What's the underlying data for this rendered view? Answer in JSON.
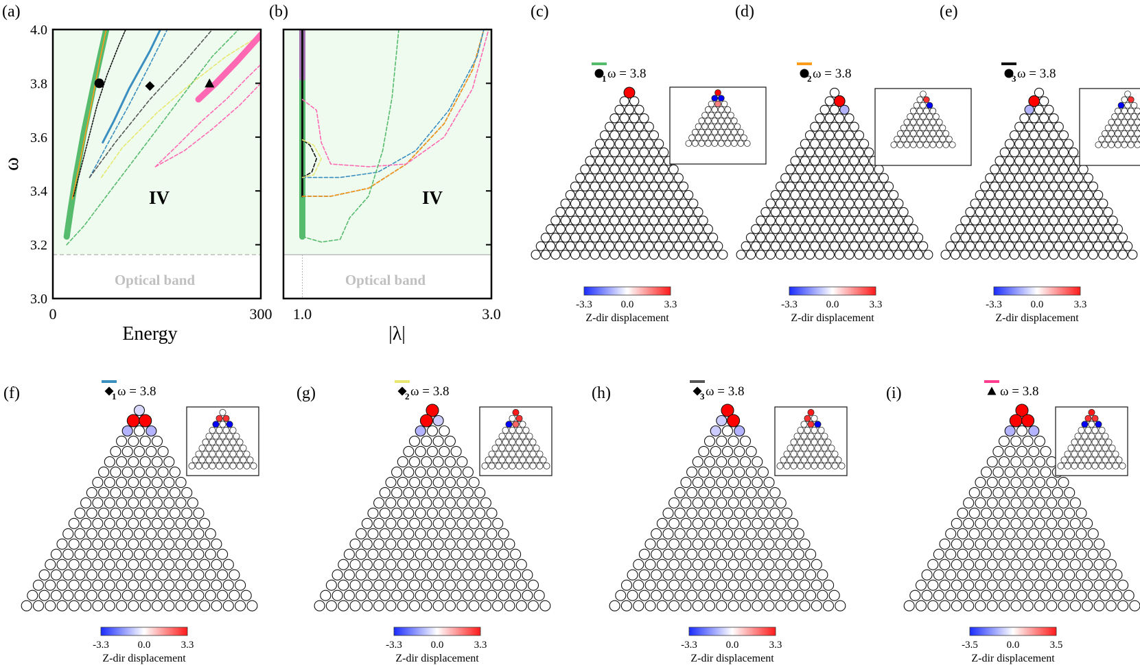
{
  "chart_data": [
    {
      "panel": "(a)",
      "type": "line",
      "xlabel": "Energy",
      "ylabel": "ω",
      "xlim": [
        0,
        300
      ],
      "ylim": [
        3.0,
        4.0
      ],
      "xticks": [
        "0",
        "300"
      ],
      "yticks": [
        "3.0",
        "3.2",
        "3.4",
        "3.6",
        "3.8",
        "4.0"
      ],
      "region_label": "IV",
      "band_label": "Optical band",
      "band_edge": 3.163,
      "background": "#eefbee",
      "series": [
        {
          "style": "solid-thick",
          "color": "#57bb6e",
          "points": [
            [
              20,
              3.23
            ],
            [
              25,
              3.32
            ],
            [
              33,
              3.45
            ],
            [
              45,
              3.62
            ],
            [
              58,
              3.78
            ],
            [
              70,
              3.92
            ],
            [
              77,
              4.0
            ]
          ]
        },
        {
          "style": "solid-thin",
          "color": "#ff9b1a",
          "points": [
            [
              28,
              3.37
            ],
            [
              36,
              3.47
            ],
            [
              46,
              3.6
            ],
            [
              57,
              3.74
            ],
            [
              68,
              3.89
            ],
            [
              77,
              4.0
            ]
          ]
        },
        {
          "style": "dotted",
          "color": "#111111",
          "points": [
            [
              30,
              3.38
            ],
            [
              40,
              3.48
            ],
            [
              52,
              3.6
            ],
            [
              64,
              3.72
            ],
            [
              78,
              3.83
            ],
            [
              95,
              3.94
            ],
            [
              105,
              4.0
            ]
          ]
        },
        {
          "style": "solid",
          "color": "#3a8ec0",
          "points": [
            [
              72,
              3.58
            ],
            [
              88,
              3.66
            ],
            [
              110,
              3.78
            ],
            [
              140,
              3.92
            ],
            [
              155,
              4.0
            ]
          ]
        },
        {
          "style": "dashed",
          "color": "#3a8ec0",
          "points": [
            [
              53,
              3.45
            ],
            [
              78,
              3.57
            ],
            [
              110,
              3.72
            ],
            [
              140,
              3.87
            ],
            [
              165,
              4.0
            ]
          ]
        },
        {
          "style": "dashed",
          "color": "#e8e870",
          "points": [
            [
              70,
              3.45
            ],
            [
              100,
              3.56
            ],
            [
              150,
              3.69
            ],
            [
              200,
              3.8
            ],
            [
              250,
              3.9
            ],
            [
              300,
              3.98
            ]
          ]
        },
        {
          "style": "dashed",
          "color": "#555555",
          "points": [
            [
              53,
              3.45
            ],
            [
              90,
              3.58
            ],
            [
              140,
              3.74
            ],
            [
              190,
              3.88
            ],
            [
              230,
              4.0
            ]
          ]
        },
        {
          "style": "solid-thick",
          "color": "#ff69b4",
          "points": [
            [
              210,
              3.74
            ],
            [
              235,
              3.8
            ],
            [
              265,
              3.88
            ],
            [
              300,
              3.98
            ]
          ]
        },
        {
          "style": "dashed",
          "color": "#ff69b4",
          "points": [
            [
              148,
              3.49
            ],
            [
              180,
              3.57
            ],
            [
              215,
              3.66
            ],
            [
              250,
              3.74
            ],
            [
              280,
              3.82
            ],
            [
              300,
              3.87
            ]
          ]
        },
        {
          "style": "dashed",
          "color": "#ff69b4",
          "points": [
            [
              148,
              3.49
            ],
            [
              190,
              3.55
            ],
            [
              230,
              3.63
            ],
            [
              270,
              3.72
            ],
            [
              300,
              3.8
            ]
          ]
        },
        {
          "style": "dashed",
          "color": "#57bb6e",
          "points": [
            [
              20,
              3.2
            ],
            [
              45,
              3.27
            ],
            [
              80,
              3.39
            ],
            [
              130,
              3.56
            ],
            [
              180,
              3.73
            ],
            [
              230,
              3.9
            ],
            [
              268,
              4.0
            ]
          ]
        }
      ],
      "markers": [
        {
          "shape": "circle",
          "x": 67,
          "y": 3.8
        },
        {
          "shape": "diamond",
          "x": 140,
          "y": 3.79
        },
        {
          "shape": "triangle",
          "x": 226,
          "y": 3.8
        }
      ]
    },
    {
      "panel": "(b)",
      "type": "line",
      "xlabel": "|λ|",
      "xlim": [
        0.8,
        3.0
      ],
      "ylim": [
        3.0,
        4.0
      ],
      "xticks": [
        "1.0",
        "3.0"
      ],
      "region_label": "IV",
      "band_label": "Optical band",
      "band_edge": 3.163,
      "background": "#eefbee",
      "series": [
        {
          "style": "solid-thick",
          "color": "#57bb6e",
          "points": [
            [
              1.0,
              3.23
            ],
            [
              1.0,
              4.0
            ]
          ]
        },
        {
          "style": "solid-thick",
          "color": "#a070b0",
          "points": [
            [
              1.0,
              3.82
            ],
            [
              1.0,
              4.0
            ]
          ]
        },
        {
          "style": "solid",
          "color": "#ff9b1a",
          "points": [
            [
              1.0,
              3.38
            ],
            [
              1.0,
              3.78
            ]
          ]
        },
        {
          "style": "solid",
          "color": "#111111",
          "points": [
            [
              1.0,
              3.38
            ],
            [
              1.0,
              4.0
            ]
          ]
        },
        {
          "style": "dashed",
          "color": "#111111",
          "points": [
            [
              1.0,
              3.38
            ],
            [
              1.3,
              3.38
            ],
            [
              1.7,
              3.41
            ],
            [
              2.1,
              3.5
            ],
            [
              2.5,
              3.65
            ],
            [
              2.8,
              3.85
            ],
            [
              2.92,
              4.0
            ]
          ]
        },
        {
          "style": "dashed",
          "color": "#ff9b1a",
          "points": [
            [
              1.0,
              3.38
            ],
            [
              1.3,
              3.38
            ],
            [
              1.7,
              3.41
            ],
            [
              2.1,
              3.5
            ],
            [
              2.5,
              3.65
            ],
            [
              2.8,
              3.85
            ],
            [
              2.92,
              4.0
            ]
          ]
        },
        {
          "style": "dashed",
          "color": "#3a8ec0",
          "points": [
            [
              1.0,
              3.45
            ],
            [
              1.4,
              3.45
            ],
            [
              1.8,
              3.47
            ],
            [
              2.2,
              3.55
            ],
            [
              2.55,
              3.7
            ],
            [
              2.85,
              3.9
            ],
            [
              2.92,
              4.0
            ]
          ]
        },
        {
          "style": "dashed",
          "color": "#111111",
          "points": [
            [
              1.0,
              3.45
            ],
            [
              1.1,
              3.47
            ],
            [
              1.15,
              3.52
            ],
            [
              1.08,
              3.57
            ],
            [
              1.0,
              3.59
            ]
          ]
        },
        {
          "style": "dashed",
          "color": "#e8e870",
          "points": [
            [
              1.0,
              3.59
            ],
            [
              1.12,
              3.57
            ],
            [
              1.2,
              3.52
            ],
            [
              1.12,
              3.46
            ],
            [
              1.0,
              3.45
            ]
          ]
        },
        {
          "style": "dashed",
          "color": "#ff69b4",
          "points": [
            [
              1.0,
              3.74
            ],
            [
              1.15,
              3.7
            ],
            [
              1.2,
              3.58
            ],
            [
              1.3,
              3.5
            ],
            [
              1.7,
              3.49
            ],
            [
              2.1,
              3.5
            ],
            [
              2.5,
              3.6
            ],
            [
              2.8,
              3.78
            ],
            [
              2.97,
              4.0
            ]
          ]
        },
        {
          "style": "dashed",
          "color": "#57bb6e",
          "points": [
            [
              1.0,
              3.23
            ],
            [
              1.2,
              3.21
            ],
            [
              1.4,
              3.22
            ],
            [
              1.5,
              3.3
            ],
            [
              1.7,
              3.38
            ],
            [
              1.85,
              3.55
            ],
            [
              1.95,
              3.75
            ],
            [
              2.02,
              4.0
            ]
          ]
        }
      ]
    },
    {
      "panel": "(c)",
      "type": "heatmap",
      "lattice": "triangular",
      "rows": 20,
      "legend_color": "#57bb6e",
      "marker": "circle",
      "index": "1",
      "formula": "ω = 3.8",
      "colorbar": {
        "min": "-3.3",
        "mid": "0.0",
        "max": "3.3",
        "label": "Z-dir displacement"
      },
      "highlighted": [
        [
          0,
          0,
          1.0
        ]
      ],
      "inset_rows": 10,
      "inset_highlighted": [
        [
          0,
          0,
          1.0
        ],
        [
          1,
          0,
          -1.0
        ],
        [
          1,
          1,
          -1.0
        ],
        [
          2,
          1,
          0.5
        ]
      ]
    },
    {
      "panel": "(d)",
      "type": "heatmap",
      "lattice": "triangular",
      "rows": 20,
      "legend_color": "#ff9b1a",
      "marker": "circle",
      "index": "2",
      "formula": "ω = 3.8",
      "colorbar": {
        "min": "-3.3",
        "mid": "0.0",
        "max": "3.3",
        "label": "Z-dir displacement"
      },
      "highlighted": [
        [
          1,
          1,
          1.0
        ],
        [
          2,
          2,
          -0.3
        ]
      ],
      "inset_rows": 10,
      "inset_highlighted": [
        [
          1,
          1,
          0.8
        ],
        [
          2,
          2,
          -1.0
        ]
      ]
    },
    {
      "panel": "(e)",
      "type": "heatmap",
      "lattice": "triangular",
      "rows": 20,
      "legend_color": "#111111",
      "marker": "circle",
      "index": "3",
      "formula": "ω = 3.8",
      "colorbar": {
        "min": "-3.3",
        "mid": "0.0",
        "max": "3.3",
        "label": "Z-dir displacement"
      },
      "highlighted": [
        [
          1,
          0,
          1.0
        ],
        [
          2,
          0,
          -0.3
        ]
      ],
      "inset_rows": 10,
      "inset_highlighted": [
        [
          1,
          1,
          0.8
        ],
        [
          2,
          0,
          -1.0
        ]
      ]
    },
    {
      "panel": "(f)",
      "type": "heatmap",
      "lattice": "triangular",
      "rows": 20,
      "legend_color": "#3a8ec0",
      "marker": "diamond",
      "index": "1",
      "formula": "ω = 3.8",
      "colorbar": {
        "min": "-3.3",
        "mid": "0.0",
        "max": "3.3",
        "label": "Z-dir displacement"
      },
      "highlighted": [
        [
          0,
          0,
          -0.15
        ],
        [
          1,
          0,
          1.0
        ],
        [
          1,
          1,
          1.0
        ],
        [
          2,
          0,
          -0.3
        ],
        [
          2,
          2,
          -0.3
        ]
      ],
      "inset_rows": 10,
      "inset_highlighted": [
        [
          1,
          0,
          0.8
        ],
        [
          1,
          1,
          0.8
        ],
        [
          2,
          0,
          -1.0
        ],
        [
          2,
          2,
          -1.0
        ]
      ]
    },
    {
      "panel": "(g)",
      "type": "heatmap",
      "lattice": "triangular",
      "rows": 20,
      "legend_color": "#e8e870",
      "marker": "diamond",
      "index": "2",
      "formula": "ω = 3.8",
      "colorbar": {
        "min": "-3.3",
        "mid": "0.0",
        "max": "3.3",
        "label": "Z-dir displacement"
      },
      "highlighted": [
        [
          0,
          0,
          1.0
        ],
        [
          1,
          0,
          1.0
        ],
        [
          1,
          1,
          -0.2
        ],
        [
          2,
          0,
          -0.3
        ]
      ],
      "inset_rows": 10,
      "inset_highlighted": [
        [
          0,
          0,
          0.9
        ],
        [
          1,
          1,
          0.8
        ],
        [
          2,
          0,
          -1.0
        ],
        [
          2,
          1,
          0.6
        ]
      ]
    },
    {
      "panel": "(h)",
      "type": "heatmap",
      "lattice": "triangular",
      "rows": 20,
      "legend_color": "#555555",
      "marker": "diamond",
      "index": "3",
      "formula": "ω = 3.8",
      "colorbar": {
        "min": "-3.3",
        "mid": "0.0",
        "max": "3.3",
        "label": "Z-dir displacement"
      },
      "highlighted": [
        [
          0,
          0,
          1.0
        ],
        [
          1,
          0,
          -0.2
        ],
        [
          1,
          1,
          1.0
        ],
        [
          2,
          0,
          -0.2
        ],
        [
          2,
          2,
          -0.3
        ]
      ],
      "inset_rows": 10,
      "inset_highlighted": [
        [
          0,
          0,
          0.9
        ],
        [
          1,
          0,
          0.8
        ],
        [
          2,
          1,
          0.8
        ],
        [
          2,
          2,
          -1.0
        ]
      ]
    },
    {
      "panel": "(i)",
      "type": "heatmap",
      "lattice": "triangular",
      "rows": 20,
      "legend_color": "#ff3c8e",
      "marker": "triangle",
      "index": "",
      "formula": "ω = 3.8",
      "colorbar": {
        "min": "-3.5",
        "mid": "0.0",
        "max": "3.5",
        "label": "Z-dir displacement"
      },
      "highlighted": [
        [
          0,
          0,
          1.0
        ],
        [
          1,
          0,
          1.0
        ],
        [
          1,
          1,
          1.0
        ],
        [
          2,
          0,
          -0.3
        ],
        [
          2,
          2,
          -0.3
        ]
      ],
      "inset_rows": 10,
      "inset_highlighted": [
        [
          0,
          0,
          0.9
        ],
        [
          1,
          0,
          0.8
        ],
        [
          1,
          1,
          0.8
        ],
        [
          2,
          0,
          -1.0
        ],
        [
          2,
          2,
          -1.0
        ]
      ]
    }
  ]
}
